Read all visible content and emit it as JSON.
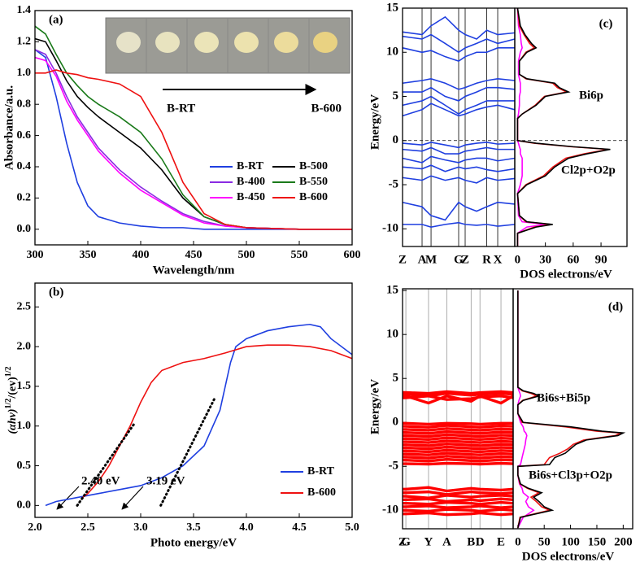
{
  "chart_data": [
    {
      "type": "line",
      "label": "(a)",
      "xlabel": "Wavelength/nm",
      "ylabel": "Absorbance/a.u.",
      "xlim": [
        300,
        600
      ],
      "xticks": [
        300,
        350,
        400,
        450,
        500,
        550,
        600
      ],
      "ylim": [
        -0.1,
        1.4
      ],
      "yticks": [
        {
          "value": 0,
          "label": "0.0"
        },
        0.2,
        0.4,
        0.6,
        0.8,
        {
          "value": 1,
          "label": "1.0"
        },
        1.2,
        1.4
      ],
      "x": [
        300,
        310,
        320,
        330,
        340,
        350,
        360,
        380,
        400,
        420,
        440,
        460,
        480,
        500,
        550,
        600
      ],
      "series": [
        {
          "name": "B-RT",
          "color": "#1f3fe0",
          "values": [
            1.15,
            1.1,
            0.85,
            0.55,
            0.3,
            0.15,
            0.08,
            0.04,
            0.02,
            0.01,
            0.01,
            0,
            0,
            0,
            0,
            0
          ]
        },
        {
          "name": "B-500",
          "color": "#000000",
          "values": [
            1.22,
            1.2,
            1.08,
            0.95,
            0.85,
            0.78,
            0.72,
            0.62,
            0.52,
            0.38,
            0.2,
            0.08,
            0.03,
            0.01,
            0,
            0
          ]
        },
        {
          "name": "B-400",
          "color": "#8a2be2",
          "values": [
            1.15,
            1.12,
            1.0,
            0.85,
            0.72,
            0.62,
            0.52,
            0.38,
            0.27,
            0.18,
            0.1,
            0.05,
            0.02,
            0.01,
            0,
            0
          ]
        },
        {
          "name": "B-550",
          "color": "#1a7a1a",
          "values": [
            1.3,
            1.25,
            1.12,
            1.0,
            0.92,
            0.85,
            0.8,
            0.72,
            0.62,
            0.45,
            0.22,
            0.08,
            0.03,
            0.01,
            0,
            0
          ]
        },
        {
          "name": "B-450",
          "color": "#ff00ff",
          "values": [
            1.1,
            1.08,
            0.98,
            0.82,
            0.7,
            0.6,
            0.5,
            0.36,
            0.25,
            0.17,
            0.09,
            0.04,
            0.02,
            0.01,
            0,
            0
          ]
        },
        {
          "name": "B-600",
          "color": "#ee1111",
          "values": [
            1.0,
            1.0,
            1.02,
            1.0,
            0.99,
            0.97,
            0.96,
            0.93,
            0.85,
            0.62,
            0.3,
            0.1,
            0.03,
            0.01,
            0,
            0
          ]
        }
      ],
      "legend": "center-right",
      "annotations": [
        "B-RT",
        "B-600"
      ]
    },
    {
      "type": "line",
      "label": "(b)",
      "xlabel": "Photo energy/eV",
      "ylabel": [
        "(αhν)",
        "1/2",
        "/(ev)",
        "1/2"
      ],
      "xlim": [
        2.0,
        5.0
      ],
      "xticks": [
        {
          "value": 2,
          "label": "2.0"
        },
        2.5,
        {
          "value": 3,
          "label": "3.0"
        },
        3.5,
        {
          "value": 4,
          "label": "4.0"
        },
        4.5,
        {
          "value": 5,
          "label": "5.0"
        }
      ],
      "ylim": [
        -0.15,
        2.8
      ],
      "yticks": [
        {
          "value": 0,
          "label": "0.0"
        },
        0.5,
        {
          "value": 1,
          "label": "1.0"
        },
        1.5,
        {
          "value": 2,
          "label": "2.0"
        },
        2.5
      ],
      "series": [
        {
          "name": "B-RT",
          "color": "#1f3fe0",
          "x": [
            2.1,
            2.2,
            2.4,
            2.6,
            2.8,
            3.0,
            3.2,
            3.4,
            3.6,
            3.75,
            3.85,
            3.9,
            4.0,
            4.2,
            4.4,
            4.6,
            4.7,
            4.8,
            5.0
          ],
          "values": [
            0.0,
            0.05,
            0.1,
            0.15,
            0.2,
            0.25,
            0.35,
            0.5,
            0.75,
            1.2,
            1.8,
            2.0,
            2.1,
            2.2,
            2.25,
            2.28,
            2.25,
            2.1,
            1.9
          ]
        },
        {
          "name": "B-600",
          "color": "#ee1111",
          "x": [
            2.45,
            2.5,
            2.6,
            2.7,
            2.8,
            2.9,
            3.0,
            3.1,
            3.2,
            3.4,
            3.6,
            3.8,
            4.0,
            4.2,
            4.4,
            4.6,
            4.8,
            5.0
          ],
          "values": [
            0.1,
            0.15,
            0.3,
            0.5,
            0.75,
            1.0,
            1.3,
            1.55,
            1.7,
            1.8,
            1.85,
            1.92,
            2.0,
            2.02,
            2.02,
            2.0,
            1.95,
            1.85
          ]
        }
      ],
      "tangents": [
        {
          "x": [
            2.4,
            2.95
          ],
          "values": [
            0,
            1.05
          ]
        },
        {
          "x": [
            3.19,
            3.7
          ],
          "values": [
            0,
            1.35
          ]
        }
      ],
      "legend": "lower-right",
      "annotations": [
        "2.40 eV",
        "3.19 eV"
      ]
    },
    {
      "type": "band",
      "label": "(c)",
      "ylabel": "Energy/eV",
      "xlabel": "DOS electrons/eV",
      "ylim": [
        -12,
        15
      ],
      "yticks": [
        -10,
        -5,
        0,
        5,
        10,
        15
      ],
      "klim": [
        0,
        1
      ],
      "kticks": [
        {
          "value": 0,
          "label": "Z"
        },
        {
          "value": 0.174,
          "label": "A"
        },
        {
          "value": 0.254,
          "label": "M"
        },
        {
          "value": 0.5,
          "label": "G"
        },
        {
          "value": 0.558,
          "label": "Z"
        },
        {
          "value": 0.75,
          "label": "R"
        },
        {
          "value": 0.848,
          "label": "X"
        }
      ],
      "band_color": "#1f3fe0",
      "band_k": [
        0,
        0.174,
        0.254,
        0.38,
        0.5,
        0.558,
        0.66,
        0.75,
        0.848,
        1
      ],
      "bands": [
        [
          12.3,
          12.0,
          13.0,
          14.0,
          12.5,
          12.0,
          11.5,
          12.5,
          12.0,
          12.2
        ],
        [
          11.8,
          11.5,
          12.0,
          11.0,
          10.0,
          10.5,
          11.0,
          11.5,
          11.0,
          11.5
        ],
        [
          10.5,
          10.0,
          10.2,
          9.5,
          9.0,
          9.5,
          10.0,
          10.0,
          10.5,
          10.5
        ],
        [
          6.5,
          6.8,
          7.0,
          6.5,
          5.8,
          6.0,
          6.5,
          6.8,
          7.0,
          6.8
        ],
        [
          5.5,
          5.5,
          6.0,
          5.0,
          4.5,
          5.0,
          5.5,
          6.0,
          6.0,
          5.8
        ],
        [
          4.0,
          4.5,
          5.0,
          4.0,
          3.0,
          3.5,
          4.0,
          4.5,
          4.5,
          4.5
        ],
        [
          2.8,
          3.5,
          4.2,
          3.5,
          2.8,
          3.0,
          3.5,
          3.8,
          4.0,
          3.5
        ],
        [
          -0.3,
          -0.5,
          -0.2,
          -0.5,
          -0.8,
          -0.5,
          -0.3,
          -0.2,
          -0.4,
          -0.3
        ],
        [
          -1.0,
          -1.2,
          -0.8,
          -1.5,
          -1.5,
          -1.2,
          -1.0,
          -0.8,
          -1.0,
          -1.0
        ],
        [
          -2.0,
          -2.5,
          -1.8,
          -2.2,
          -2.5,
          -2.2,
          -2.0,
          -2.0,
          -2.3,
          -2.0
        ],
        [
          -3.0,
          -3.2,
          -2.8,
          -3.5,
          -3.0,
          -3.2,
          -3.0,
          -3.3,
          -3.5,
          -3.2
        ],
        [
          -4.2,
          -4.5,
          -4.0,
          -4.5,
          -4.2,
          -4.5,
          -4.8,
          -4.2,
          -4.5,
          -4.3
        ],
        [
          -7.0,
          -7.5,
          -8.5,
          -9.0,
          -7.0,
          -7.5,
          -8.0,
          -7.5,
          -7.0,
          -7.2
        ],
        [
          -9.5,
          -9.5,
          -9.8,
          -9.5,
          -9.3,
          -9.5,
          -9.6,
          -9.5,
          -9.7,
          -9.5
        ]
      ],
      "fermi_line": true,
      "dos_lim": [
        -3,
        118
      ],
      "dos_ticks": [
        0,
        30,
        60,
        90
      ],
      "dos_energy": [
        -12,
        -10.5,
        -9.8,
        -9.5,
        -9.2,
        -8.5,
        -6,
        -5,
        -4,
        -3,
        -2,
        -1.5,
        -1,
        -0.7,
        -0.3,
        0,
        1,
        2.5,
        3,
        4,
        5,
        5.5,
        6,
        6.5,
        7,
        7.5,
        9,
        10,
        10.5,
        11,
        12,
        13,
        15
      ],
      "dos": [
        {
          "color": "#ff00ff",
          "values": [
            0,
            0,
            10,
            30,
            5,
            1,
            0,
            3,
            5,
            5,
            5,
            3,
            3,
            2,
            1,
            0,
            0,
            0,
            1,
            2,
            2,
            3,
            3,
            3,
            2,
            1,
            1,
            3,
            5,
            4,
            3,
            1,
            0
          ]
        },
        {
          "color": "#ee1111",
          "values": [
            0,
            0,
            18,
            36,
            9,
            2,
            0,
            9,
            28,
            38,
            52,
            72,
            98,
            58,
            18,
            0,
            0,
            0,
            5,
            19,
            29,
            53,
            43,
            38,
            9,
            2,
            2,
            9,
            18,
            13,
            7,
            2,
            0
          ]
        },
        {
          "color": "#000000",
          "values": [
            0,
            0,
            20,
            38,
            10,
            2,
            0,
            10,
            30,
            40,
            55,
            75,
            100,
            60,
            20,
            0,
            0,
            0,
            5,
            20,
            30,
            55,
            45,
            40,
            10,
            2,
            2,
            10,
            20,
            15,
            8,
            3,
            0
          ]
        }
      ],
      "annotations": [
        "Bi6p",
        "Cl2p+O2p"
      ]
    },
    {
      "type": "band",
      "label": "(d)",
      "ylabel": "Energy/eV",
      "xlabel": "DOS electrons/eV",
      "ylim": [
        -12.1,
        15.2
      ],
      "yticks": [
        -10,
        -5,
        0,
        5,
        10,
        15
      ],
      "klim": [
        0,
        1
      ],
      "kticks": [
        {
          "value": 0,
          "label": "Z"
        },
        {
          "value": 0.03,
          "label": "G"
        },
        {
          "value": 0.235,
          "label": "Y"
        },
        {
          "value": 0.4,
          "label": "A"
        },
        {
          "value": 0.62,
          "label": "B"
        },
        {
          "value": 0.7,
          "label": "D"
        },
        {
          "value": 0.89,
          "label": "E"
        }
      ],
      "band_color": "#ff0000",
      "band_k": [
        0,
        0.03,
        0.235,
        0.4,
        0.62,
        0.7,
        0.89,
        1
      ],
      "bands": [
        [
          3.2,
          3.2,
          3.0,
          3.3,
          3.1,
          3.2,
          3.3,
          3.2
        ],
        [
          3.4,
          3.4,
          3.3,
          3.5,
          3.3,
          3.4,
          3.5,
          3.4
        ],
        [
          2.8,
          2.8,
          3.0,
          2.6,
          2.7,
          2.9,
          3.0,
          2.8
        ],
        [
          3.0,
          3.0,
          2.2,
          3.0,
          2.4,
          3.0,
          2.2,
          3.0
        ],
        [
          -0.1,
          -0.1,
          -0.2,
          -0.1,
          -0.15,
          -0.2,
          -0.1,
          -0.1
        ],
        [
          -0.45,
          -0.45,
          -0.55,
          -0.35,
          -0.5,
          -0.55,
          -0.4,
          -0.45
        ],
        [
          -0.8,
          -0.8,
          -0.9,
          -0.7,
          -0.85,
          -0.9,
          -0.75,
          -0.8
        ],
        [
          -1.15,
          -1.15,
          -1.25,
          -1.05,
          -1.2,
          -1.25,
          -1.1,
          -1.15
        ],
        [
          -1.5,
          -1.5,
          -1.6,
          -1.4,
          -1.55,
          -1.6,
          -1.45,
          -1.5
        ],
        [
          -1.85,
          -1.85,
          -1.95,
          -1.75,
          -1.9,
          -1.95,
          -1.8,
          -1.85
        ],
        [
          -2.2,
          -2.2,
          -2.3,
          -2.1,
          -2.25,
          -2.3,
          -2.15,
          -2.2
        ],
        [
          -2.55,
          -2.55,
          -2.65,
          -2.45,
          -2.6,
          -2.65,
          -2.5,
          -2.55
        ],
        [
          -2.9,
          -2.9,
          -3.0,
          -2.8,
          -2.95,
          -3.0,
          -2.85,
          -2.9
        ],
        [
          -3.25,
          -3.25,
          -3.35,
          -3.15,
          -3.3,
          -3.35,
          -3.2,
          -3.25
        ],
        [
          -3.6,
          -3.6,
          -3.7,
          -3.5,
          -3.65,
          -3.7,
          -3.55,
          -3.6
        ],
        [
          -3.95,
          -3.95,
          -4.05,
          -3.85,
          -4.0,
          -4.05,
          -3.9,
          -3.95
        ],
        [
          -4.3,
          -4.3,
          -4.4,
          -4.2,
          -4.35,
          -4.4,
          -4.25,
          -4.3
        ],
        [
          -4.7,
          -4.7,
          -4.75,
          -4.65,
          -4.7,
          -4.75,
          -4.65,
          -4.7
        ],
        [
          -7.6,
          -7.6,
          -7.4,
          -7.8,
          -7.5,
          -7.6,
          -7.7,
          -7.6
        ],
        [
          -8.0,
          -8.0,
          -7.9,
          -8.2,
          -7.9,
          -8.0,
          -8.1,
          -8.0
        ],
        [
          -8.4,
          -8.4,
          -8.6,
          -8.3,
          -8.5,
          -8.4,
          -8.3,
          -8.4
        ],
        [
          -8.8,
          -8.8,
          -8.7,
          -9.0,
          -8.8,
          -8.9,
          -8.7,
          -8.8
        ],
        [
          -9.2,
          -9.2,
          -9.3,
          -9.1,
          -9.2,
          -9.3,
          -9.1,
          -9.2
        ],
        [
          -9.6,
          -9.6,
          -9.5,
          -9.7,
          -9.6,
          -9.5,
          -9.7,
          -9.6
        ],
        [
          -10.0,
          -10.0,
          -10.1,
          -9.9,
          -10.0,
          -10.1,
          -9.9,
          -10.0
        ],
        [
          -10.4,
          -10.4,
          -10.3,
          -10.5,
          -10.4,
          -10.3,
          -10.5,
          -10.4
        ]
      ],
      "fermi_line": false,
      "dos_lim": [
        -9,
        218
      ],
      "dos_ticks": [
        0,
        50,
        100,
        150,
        200
      ],
      "dos_energy": [
        -12,
        -10.8,
        -10,
        -9.6,
        -9,
        -8.5,
        -8,
        -7.5,
        -7,
        -6,
        -5,
        -4.8,
        -4,
        -3.5,
        -3,
        -2.5,
        -2,
        -1.5,
        -1.2,
        -1,
        -0.5,
        0,
        1,
        2,
        2.5,
        3,
        3.3,
        3.6,
        4,
        6,
        15
      ],
      "dos": [
        {
          "color": "#ff00ff",
          "values": [
            0,
            10,
            30,
            20,
            15,
            20,
            10,
            8,
            3,
            0,
            0,
            5,
            8,
            10,
            12,
            14,
            15,
            17,
            15,
            12,
            10,
            5,
            0,
            0,
            2,
            5,
            4,
            2,
            0,
            0,
            0
          ]
        },
        {
          "color": "#ee1111",
          "values": [
            0,
            4,
            60,
            45,
            35,
            25,
            40,
            18,
            4,
            0,
            0,
            50,
            60,
            80,
            95,
            105,
            125,
            185,
            195,
            150,
            90,
            8,
            0,
            0,
            9,
            35,
            25,
            8,
            0,
            0,
            0
          ]
        },
        {
          "color": "#000000",
          "values": [
            0,
            5,
            65,
            50,
            40,
            30,
            45,
            20,
            5,
            0,
            0,
            60,
            70,
            90,
            100,
            110,
            130,
            190,
            200,
            160,
            100,
            10,
            0,
            0,
            10,
            40,
            30,
            10,
            0,
            0,
            0
          ]
        }
      ],
      "annotations": [
        "Bi6s+Bi5p",
        "Bi6s+Cl3p+O2p"
      ]
    }
  ]
}
